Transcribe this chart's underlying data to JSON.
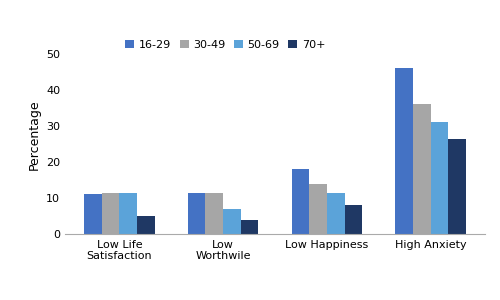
{
  "categories": [
    "Low Life\nSatisfaction",
    "Low\nWorthwile",
    "Low Happiness",
    "High Anxiety"
  ],
  "groups": [
    "16-29",
    "30-49",
    "50-69",
    "70+"
  ],
  "values": {
    "16-29": [
      11,
      11.5,
      18,
      46
    ],
    "30-49": [
      11.5,
      11.5,
      14,
      36
    ],
    "50-69": [
      11.5,
      7,
      11.5,
      31
    ],
    "70+": [
      5,
      4,
      8,
      26.5
    ]
  },
  "colors": {
    "16-29": "#4472C4",
    "30-49": "#A6A6A6",
    "50-69": "#5BA3D9",
    "70+": "#1F3864"
  },
  "ylabel": "Percentage",
  "ylim": [
    0,
    55
  ],
  "yticks": [
    0,
    10,
    20,
    30,
    40,
    50
  ],
  "bar_width": 0.17,
  "background_color": "#ffffff"
}
